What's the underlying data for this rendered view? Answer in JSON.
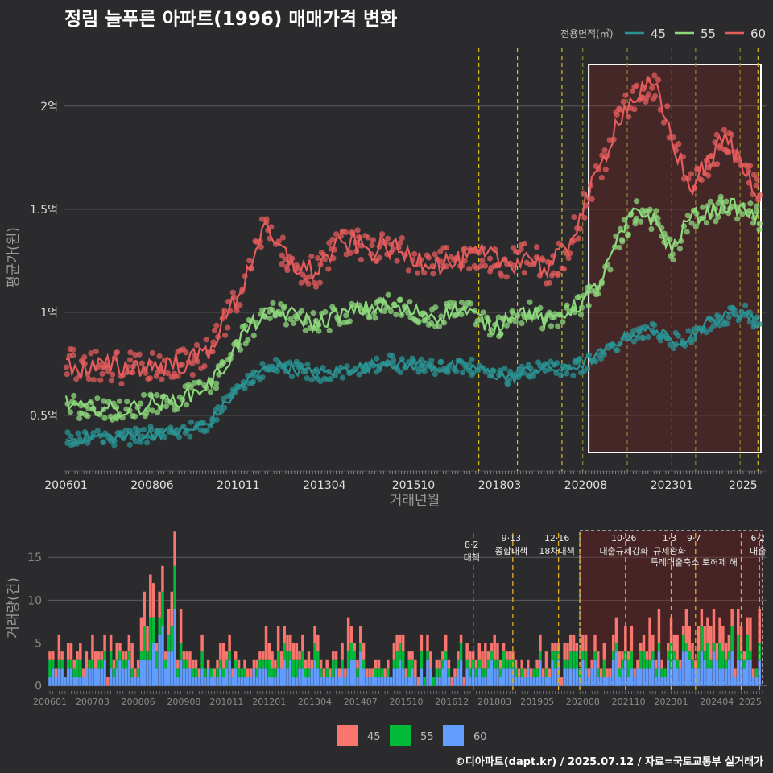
{
  "title": "정림 늘푸른 아파트(1996) 매매가격 변화",
  "footer": "©디아파트(dapt.kr) / 2025.07.12 / 자료=국토교통부 실거래가",
  "colors": {
    "s45": "#2a9494",
    "s55": "#8ed97c",
    "s60": "#e65c5c",
    "bar45": "#f8766d",
    "bar55": "#00ba38",
    "bar60": "#619cff"
  },
  "chart_data": [
    {
      "type": "line",
      "title": "정림 늘푸른 아파트(1996) 매매가격 변화",
      "xlabel": "거래년월",
      "ylabel": "평균가(원)",
      "legend_title": "전용면적(㎡)",
      "legend_position": "top-right",
      "x_ticks": [
        "200601",
        "200806",
        "201011",
        "201304",
        "201510",
        "201803",
        "202008",
        "202301",
        "2025"
      ],
      "y_ticks": [
        {
          "v": 0.5,
          "label": "0.5억"
        },
        {
          "v": 1,
          "label": "1억"
        },
        {
          "v": 1.5,
          "label": "1.5억"
        },
        {
          "v": 2,
          "label": "2억"
        }
      ],
      "ylim": [
        0.23,
        2.3
      ],
      "policy_lines": [
        "2017-08",
        "2018-09",
        "2019-12",
        "2020-07",
        "2021-10",
        "2023-01",
        "2023-09",
        "2024-12",
        "2025-06"
      ],
      "highlight_range": [
        "2020-09",
        "2025-07"
      ],
      "series": [
        {
          "name": "45",
          "color": "#2a9494",
          "x": [
            "2006-01",
            "2006-07",
            "2007-01",
            "2007-07",
            "2008-01",
            "2008-07",
            "2009-01",
            "2009-07",
            "2010-01",
            "2010-07",
            "2011-01",
            "2011-07",
            "2012-01",
            "2012-07",
            "2013-01",
            "2013-07",
            "2014-01",
            "2014-07",
            "2015-01",
            "2015-07",
            "2016-01",
            "2016-07",
            "2017-01",
            "2017-07",
            "2018-01",
            "2018-07",
            "2019-01",
            "2019-07",
            "2020-01",
            "2020-07",
            "2021-01",
            "2021-07",
            "2022-01",
            "2022-07",
            "2023-01",
            "2023-07",
            "2024-01",
            "2024-07",
            "2025-01",
            "2025-06"
          ],
          "y": [
            0.38,
            0.39,
            0.4,
            0.39,
            0.4,
            0.41,
            0.42,
            0.43,
            0.46,
            0.56,
            0.66,
            0.72,
            0.74,
            0.72,
            0.7,
            0.71,
            0.73,
            0.74,
            0.76,
            0.74,
            0.75,
            0.73,
            0.74,
            0.73,
            0.7,
            0.68,
            0.72,
            0.73,
            0.72,
            0.75,
            0.8,
            0.86,
            0.9,
            0.92,
            0.86,
            0.88,
            0.95,
            0.98,
            1.0,
            0.94
          ]
        },
        {
          "name": "55",
          "color": "#8ed97c",
          "x": [
            "2006-01",
            "2006-07",
            "2007-01",
            "2007-07",
            "2008-01",
            "2008-07",
            "2009-01",
            "2009-07",
            "2010-01",
            "2010-07",
            "2011-01",
            "2011-07",
            "2012-01",
            "2012-07",
            "2013-01",
            "2013-07",
            "2014-01",
            "2014-07",
            "2015-01",
            "2015-07",
            "2016-01",
            "2016-07",
            "2017-01",
            "2017-07",
            "2018-01",
            "2018-07",
            "2019-01",
            "2019-07",
            "2020-01",
            "2020-07",
            "2021-01",
            "2021-07",
            "2022-01",
            "2022-07",
            "2023-01",
            "2023-07",
            "2024-01",
            "2024-07",
            "2025-01",
            "2025-06"
          ],
          "y": [
            0.56,
            0.53,
            0.54,
            0.52,
            0.54,
            0.56,
            0.57,
            0.6,
            0.65,
            0.75,
            0.9,
            0.98,
            1.0,
            0.98,
            0.94,
            0.98,
            1.0,
            1.02,
            1.03,
            1.0,
            1.0,
            0.98,
            1.02,
            0.98,
            0.92,
            1.0,
            1.0,
            0.95,
            1.0,
            1.05,
            1.15,
            1.35,
            1.5,
            1.45,
            1.3,
            1.46,
            1.48,
            1.52,
            1.5,
            1.45
          ]
        },
        {
          "name": "60",
          "color": "#e65c5c",
          "x": [
            "2006-01",
            "2006-07",
            "2007-01",
            "2007-07",
            "2008-01",
            "2008-07",
            "2009-01",
            "2009-07",
            "2010-01",
            "2010-07",
            "2011-01",
            "2011-07",
            "2012-01",
            "2012-07",
            "2013-01",
            "2013-07",
            "2014-01",
            "2014-07",
            "2015-01",
            "2015-07",
            "2016-01",
            "2016-07",
            "2017-01",
            "2017-07",
            "2018-01",
            "2018-07",
            "2019-01",
            "2019-07",
            "2020-01",
            "2020-07",
            "2021-01",
            "2021-07",
            "2022-01",
            "2022-07",
            "2023-01",
            "2023-07",
            "2024-01",
            "2024-07",
            "2025-01",
            "2025-06"
          ],
          "y": [
            0.76,
            0.72,
            0.74,
            0.73,
            0.74,
            0.74,
            0.75,
            0.76,
            0.82,
            0.98,
            1.15,
            1.4,
            1.3,
            1.22,
            1.2,
            1.3,
            1.34,
            1.3,
            1.32,
            1.28,
            1.26,
            1.24,
            1.24,
            1.28,
            1.26,
            1.24,
            1.28,
            1.2,
            1.3,
            1.5,
            1.7,
            1.95,
            2.05,
            2.1,
            1.85,
            1.6,
            1.72,
            1.85,
            1.7,
            1.6
          ]
        }
      ]
    },
    {
      "type": "bar",
      "stacked": true,
      "ylabel": "거래량(건)",
      "y_ticks": [
        0,
        5,
        10,
        15
      ],
      "ylim": [
        -0.5,
        18.5
      ],
      "x_ticks": [
        "200601",
        "200703",
        "200806",
        "200908",
        "201011",
        "201201",
        "201304",
        "201407",
        "201510",
        "201612",
        "201803",
        "201905",
        "202008",
        "202110",
        "202301",
        "202404",
        "2025"
      ],
      "highlight_range": [
        "2020-07",
        "2025-07"
      ],
      "series_names": [
        "45",
        "55",
        "60"
      ],
      "events": [
        {
          "date": "2017-08",
          "label": "8·2 대책",
          "row": 2
        },
        {
          "date": "2018-09",
          "label": "9·13 종합대책",
          "row": 1
        },
        {
          "date": "2019-12",
          "label": "12·16 18차대책",
          "row": 1
        },
        {
          "date": "2020-07",
          "label": "",
          "row": 1
        },
        {
          "date": "2021-10",
          "label": "10·26 대출규제강화",
          "row": 1
        },
        {
          "date": "2023-01",
          "label": "1·3 규제완화",
          "row": 1
        },
        {
          "date": "2023-09",
          "label": "9·7 특례대출축소 토허제 해",
          "row": 3
        },
        {
          "date": "2024-12",
          "label": "",
          "row": 1
        },
        {
          "date": "2025-06",
          "label": "6·2 대출",
          "row": 1
        }
      ],
      "monthly_totals_seed": 7
    }
  ],
  "legend2": [
    "45",
    "55",
    "60"
  ]
}
